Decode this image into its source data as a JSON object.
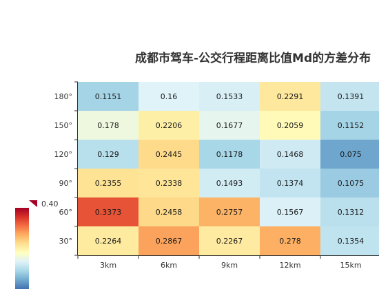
{
  "chart_data": {
    "type": "heatmap",
    "title": "成都市驾车-公交行程距离比值Md的方差分布",
    "x_categories": [
      "3km",
      "6km",
      "9km",
      "12km",
      "15km"
    ],
    "y_categories": [
      "30°",
      "60°",
      "90°",
      "120°",
      "150°",
      "180°"
    ],
    "values": [
      [
        "0.2264",
        "0.3373",
        "0.2355",
        "0.129",
        "0.178",
        "0.1151"
      ],
      [
        "0.2867",
        "0.2458",
        "0.2338",
        "0.2445",
        "0.2206",
        "0.16"
      ],
      [
        "0.2267",
        "0.2757",
        "0.1493",
        "0.1178",
        "0.1677",
        "0.1533"
      ],
      [
        "0.278",
        "0.1567",
        "0.1374",
        "0.1468",
        "0.2059",
        "0.2291"
      ],
      [
        "0.1354",
        "0.1312",
        "0.1075",
        "0.075",
        "0.1152",
        "0.1391"
      ]
    ],
    "visual_map": {
      "max_label": "0.40",
      "range": [
        0,
        0.4
      ],
      "colors": [
        "#313695",
        "#4575b4",
        "#74add1",
        "#abd9e9",
        "#e0f3f8",
        "#ffffbf",
        "#fee090",
        "#fdae61",
        "#f46d43",
        "#d73027",
        "#a50026"
      ]
    }
  }
}
